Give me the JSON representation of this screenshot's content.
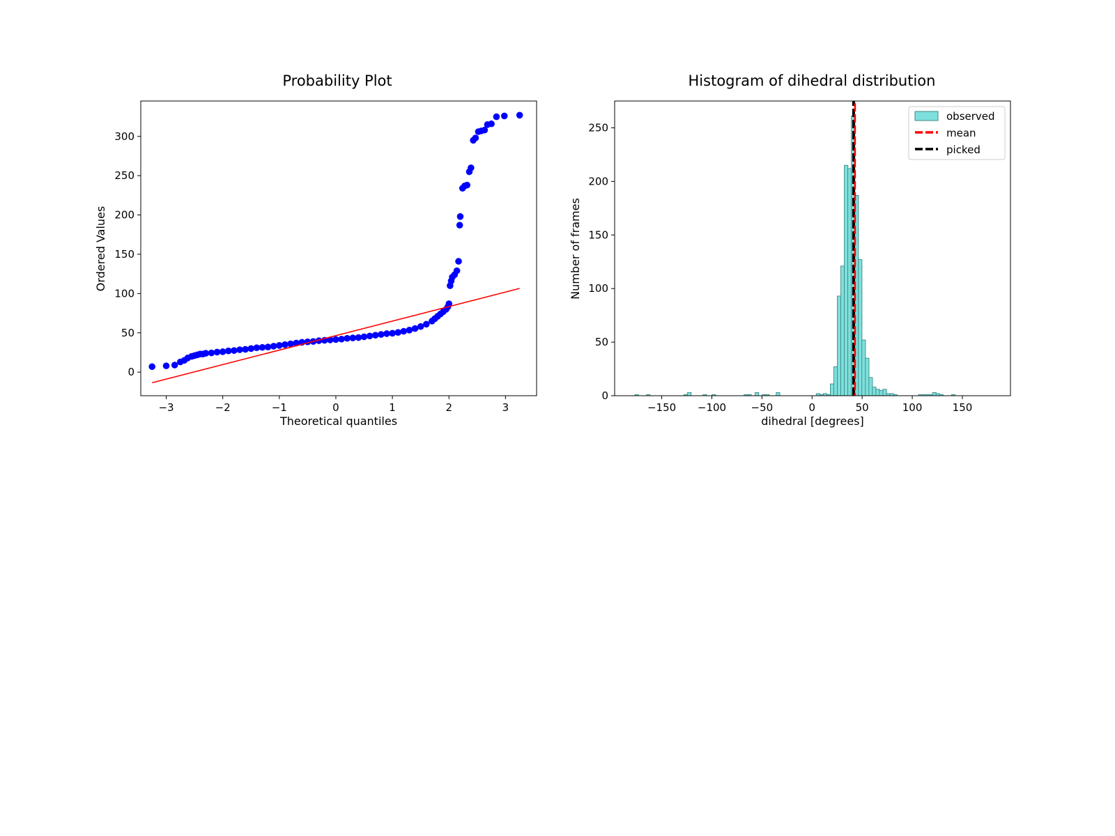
{
  "chart_data": [
    {
      "type": "scatter",
      "title": "Probability Plot",
      "xlabel": "Theoretical quantiles",
      "ylabel": "Ordered Values",
      "xlim": [
        -3.45,
        3.55
      ],
      "ylim": [
        -30,
        345
      ],
      "xticks": [
        -3,
        -2,
        -1,
        0,
        1,
        2,
        3
      ],
      "xtick_labels": [
        "−3",
        "−2",
        "−1",
        "0",
        "1",
        "2",
        "3"
      ],
      "yticks": [
        0,
        50,
        100,
        150,
        200,
        250,
        300
      ],
      "ytick_labels": [
        "0",
        "50",
        "100",
        "150",
        "200",
        "250",
        "300"
      ],
      "marker_color": "#0000ff",
      "fit_color": "#ff0000",
      "points": [
        [
          -3.25,
          7
        ],
        [
          -3.0,
          8
        ],
        [
          -2.85,
          9
        ],
        [
          -2.75,
          13
        ],
        [
          -2.68,
          15
        ],
        [
          -2.62,
          18
        ],
        [
          -2.55,
          20
        ],
        [
          -2.5,
          21
        ],
        [
          -2.45,
          22
        ],
        [
          -2.4,
          23
        ],
        [
          -2.35,
          23
        ],
        [
          -2.3,
          24
        ],
        [
          -2.2,
          24.5
        ],
        [
          -2.1,
          25.5
        ],
        [
          -2.0,
          26
        ],
        [
          -1.9,
          27
        ],
        [
          -1.8,
          27.5
        ],
        [
          -1.7,
          28.5
        ],
        [
          -1.6,
          29
        ],
        [
          -1.5,
          30
        ],
        [
          -1.4,
          31
        ],
        [
          -1.3,
          31.5
        ],
        [
          -1.2,
          32
        ],
        [
          -1.1,
          33
        ],
        [
          -1.0,
          34
        ],
        [
          -0.9,
          35
        ],
        [
          -0.8,
          36
        ],
        [
          -0.7,
          37
        ],
        [
          -0.6,
          38
        ],
        [
          -0.5,
          38.5
        ],
        [
          -0.4,
          39
        ],
        [
          -0.3,
          40
        ],
        [
          -0.2,
          40.5
        ],
        [
          -0.1,
          41
        ],
        [
          0.0,
          41.5
        ],
        [
          0.1,
          42
        ],
        [
          0.2,
          43
        ],
        [
          0.3,
          43.5
        ],
        [
          0.4,
          44
        ],
        [
          0.5,
          45
        ],
        [
          0.6,
          46
        ],
        [
          0.7,
          47
        ],
        [
          0.8,
          48
        ],
        [
          0.9,
          49
        ],
        [
          1.0,
          49.5
        ],
        [
          1.1,
          50.5
        ],
        [
          1.2,
          52
        ],
        [
          1.3,
          53.5
        ],
        [
          1.4,
          55.5
        ],
        [
          1.5,
          58
        ],
        [
          1.6,
          61
        ],
        [
          1.7,
          65
        ],
        [
          1.75,
          68
        ],
        [
          1.8,
          71
        ],
        [
          1.85,
          74
        ],
        [
          1.9,
          77
        ],
        [
          1.95,
          80
        ],
        [
          1.98,
          83
        ],
        [
          2.0,
          87
        ],
        [
          2.02,
          110
        ],
        [
          2.04,
          116
        ],
        [
          2.06,
          121
        ],
        [
          2.1,
          124
        ],
        [
          2.14,
          129
        ],
        [
          2.17,
          141
        ],
        [
          2.19,
          187
        ],
        [
          2.2,
          198
        ],
        [
          2.24,
          234
        ],
        [
          2.28,
          237
        ],
        [
          2.32,
          238
        ],
        [
          2.36,
          255
        ],
        [
          2.39,
          260
        ],
        [
          2.43,
          295
        ],
        [
          2.47,
          298
        ],
        [
          2.52,
          306
        ],
        [
          2.57,
          307
        ],
        [
          2.63,
          308
        ],
        [
          2.68,
          315
        ],
        [
          2.75,
          316
        ],
        [
          2.84,
          325
        ],
        [
          2.98,
          326
        ],
        [
          3.25,
          327
        ]
      ],
      "fit_line": {
        "x": [
          -3.25,
          3.25
        ],
        "y": [
          -13.5,
          106.5
        ]
      }
    },
    {
      "type": "bar",
      "title": "Histogram of dihedral distribution",
      "xlabel": "dihedral [degrees]",
      "ylabel": "Number of frames",
      "xlim": [
        -197,
        198
      ],
      "ylim": [
        0,
        275
      ],
      "xticks": [
        -150,
        -100,
        -50,
        0,
        50,
        100,
        150
      ],
      "xtick_labels": [
        "−150",
        "−100",
        "−50",
        "0",
        "50",
        "100",
        "150"
      ],
      "yticks": [
        0,
        50,
        100,
        150,
        200,
        250
      ],
      "ytick_labels": [
        "0",
        "50",
        "100",
        "150",
        "200",
        "250"
      ],
      "bin_width": 3.6,
      "bar_fill": "#7ee0dc",
      "bar_edge": "#3a8a86",
      "bins": [
        [
          -175,
          1
        ],
        [
          -163.5,
          1
        ],
        [
          -126,
          1
        ],
        [
          -122.5,
          3
        ],
        [
          -107,
          1
        ],
        [
          -98,
          1
        ],
        [
          -66,
          1
        ],
        [
          -62.5,
          1
        ],
        [
          -55,
          3
        ],
        [
          -48,
          1
        ],
        [
          -44.5,
          1
        ],
        [
          -34,
          3
        ],
        [
          6,
          2
        ],
        [
          9.5,
          1
        ],
        [
          13,
          2
        ],
        [
          16.5,
          1
        ],
        [
          20,
          11
        ],
        [
          23.5,
          27
        ],
        [
          27,
          93
        ],
        [
          30.5,
          121
        ],
        [
          34,
          215
        ],
        [
          37.5,
          212
        ],
        [
          41,
          261
        ],
        [
          44.5,
          187
        ],
        [
          48,
          127
        ],
        [
          51.5,
          52
        ],
        [
          55,
          35
        ],
        [
          58.5,
          17
        ],
        [
          62,
          8
        ],
        [
          65.5,
          6
        ],
        [
          69,
          5
        ],
        [
          72.5,
          6
        ],
        [
          76,
          2
        ],
        [
          79.5,
          2
        ],
        [
          83,
          1
        ],
        [
          108,
          1
        ],
        [
          111.5,
          1
        ],
        [
          115,
          1
        ],
        [
          118.5,
          1
        ],
        [
          122,
          3
        ],
        [
          125.5,
          2
        ],
        [
          129,
          1
        ],
        [
          141,
          1
        ]
      ],
      "mean_line": {
        "x": 41.5,
        "color": "#ff0000",
        "label": "mean"
      },
      "picked_line": {
        "x": 41.5,
        "color": "#000000",
        "label": "picked"
      },
      "legend": {
        "placement": "top-right",
        "entries": [
          "observed",
          "mean",
          "picked"
        ]
      }
    }
  ]
}
